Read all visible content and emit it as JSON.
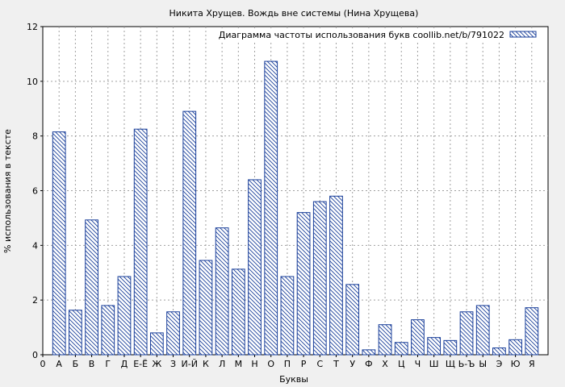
{
  "chart_data": {
    "type": "bar",
    "title": "Никита Хрущев. Вождь вне системы (Нина Хрущева)",
    "xlabel": "Буквы",
    "ylabel": "% использования в тексте",
    "legend": "Диаграмма частоты использования букв coollib.net/b/791022",
    "legend_position": "top-right",
    "grid": true,
    "ylim": [
      0,
      12
    ],
    "yticks": [
      0,
      2,
      4,
      6,
      8,
      10,
      12
    ],
    "first_tick": "0",
    "categories": [
      "А",
      "Б",
      "В",
      "Г",
      "Д",
      "Е-Ё",
      "Ж",
      "З",
      "И-Й",
      "К",
      "Л",
      "М",
      "Н",
      "О",
      "П",
      "Р",
      "С",
      "Т",
      "У",
      "Ф",
      "Х",
      "Ц",
      "Ч",
      "Ш",
      "Щ",
      "Ь-Ъ",
      "Ы",
      "Э",
      "Ю",
      "Я"
    ],
    "values": [
      8.15,
      1.63,
      4.93,
      1.8,
      2.86,
      8.25,
      0.8,
      1.57,
      8.9,
      3.45,
      4.64,
      3.13,
      6.4,
      10.73,
      2.86,
      5.2,
      5.6,
      5.8,
      2.57,
      0.18,
      1.1,
      0.45,
      1.28,
      0.63,
      0.52,
      1.57,
      1.8,
      0.25,
      0.55,
      1.72
    ],
    "colors": {
      "bar_stroke": "#1a3f9a",
      "hatch": "#1a3f9a",
      "background": "#f0f0f0",
      "plot_area": "#ffffff"
    }
  }
}
